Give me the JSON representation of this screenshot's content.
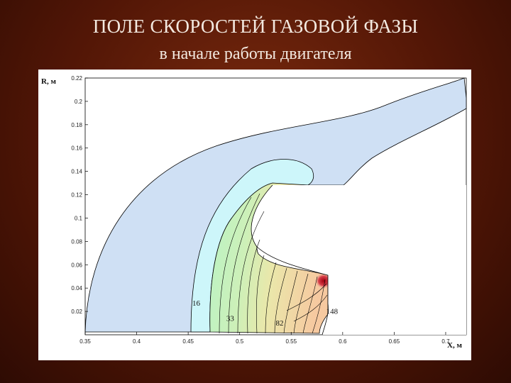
{
  "slide": {
    "title": "ПОЛЕ СКОРОСТЕЙ ГАЗОВОЙ ФАЗЫ",
    "subtitle": "в начале работы двигателя"
  },
  "chart_data": {
    "type": "heatmap",
    "title": "ПОЛЕ СКОРОСТЕЙ ГАЗОВОЙ ФАЗЫ",
    "subtitle": "в начале работы двигателя",
    "xlabel": "X, м",
    "ylabel": "R, м",
    "xlim": [
      0.35,
      0.72
    ],
    "ylim": [
      0.0,
      0.22
    ],
    "x_ticks": [
      "0.35",
      "0.4",
      "0.45",
      "0.5",
      "0.55",
      "0.6",
      "0.65",
      "0.7"
    ],
    "y_ticks": [
      "0.22",
      "0.2",
      "0.18",
      "0.16",
      "0.14",
      "0.12",
      "0.1",
      "0.08",
      "0.06",
      "0.04",
      "0.02"
    ],
    "contour_labels": [
      {
        "text": "16",
        "x": 0.454,
        "y": 0.025
      },
      {
        "text": "33",
        "x": 0.487,
        "y": 0.012
      },
      {
        "text": "82",
        "x": 0.535,
        "y": 0.008
      },
      {
        "text": "148",
        "x": 0.584,
        "y": 0.018
      }
    ],
    "colors": {
      "outer_region": "#cfe0f4",
      "inner_region": "#cdf6fa",
      "low": "#b8f0c4",
      "mid": "#e6edb0",
      "high": "#f4cfa6",
      "max": "#b0101c"
    }
  }
}
